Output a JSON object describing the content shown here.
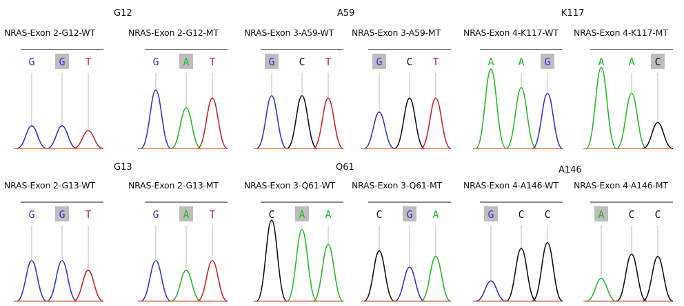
{
  "colors": {
    "A": "#22bb22",
    "C": "#111111",
    "G": "#3333cc",
    "T": "#cc2222",
    "highlight": "#bdbdbd",
    "frame": "#888888",
    "baseline": "#d06030"
  },
  "groups": [
    {
      "label": "G12"
    },
    {
      "label": "A59"
    },
    {
      "label": "K117"
    },
    {
      "label": "G13"
    },
    {
      "label": "Q61"
    },
    {
      "label": "A146"
    }
  ],
  "panels": [
    {
      "title": "NRAS-Exon 2-G12-WT",
      "bases": [
        "G",
        "G",
        "T"
      ],
      "highlight": 1,
      "peaks": [
        0.28,
        0.28,
        0.22
      ]
    },
    {
      "title": "NRAS-Exon 2-G12-MT",
      "bases": [
        "G",
        "A",
        "T"
      ],
      "highlight": 1,
      "peaks": [
        0.72,
        0.5,
        0.62
      ]
    },
    {
      "title": "NRAS-Exon 3-A59-WT",
      "bases": [
        "G",
        "C",
        "T"
      ],
      "highlight": 0,
      "peaks": [
        0.65,
        0.65,
        0.62
      ]
    },
    {
      "title": "NRAS-Exon 3-A59-MT",
      "bases": [
        "G",
        "C",
        "T"
      ],
      "highlight": 0,
      "peaks": [
        0.45,
        0.62,
        0.62
      ]
    },
    {
      "title": "NRAS-Exon 4-K117-WT",
      "bases": [
        "A",
        "A",
        "G"
      ],
      "highlight": 2,
      "peaks": [
        0.98,
        0.75,
        0.68
      ]
    },
    {
      "title": "NRAS-Exon 4-K117-MT",
      "bases": [
        "A",
        "A",
        "C"
      ],
      "highlight": 2,
      "peaks": [
        1.0,
        0.68,
        0.32
      ]
    },
    {
      "title": "NRAS-Exon 2-G13-WT",
      "bases": [
        "G",
        "G",
        "T"
      ],
      "highlight": 1,
      "peaks": [
        0.5,
        0.5,
        0.38
      ]
    },
    {
      "title": "NRAS-Exon 2-G13-MT",
      "bases": [
        "G",
        "A",
        "T"
      ],
      "highlight": 1,
      "peaks": [
        0.5,
        0.38,
        0.5
      ]
    },
    {
      "title": "NRAS-Exon 3-Q61-WT",
      "bases": [
        "C",
        "A",
        "A"
      ],
      "highlight": 1,
      "peaks": [
        1.0,
        0.88,
        0.7
      ]
    },
    {
      "title": "NRAS-Exon 3-Q61-MT",
      "bases": [
        "C",
        "G",
        "A"
      ],
      "highlight": 1,
      "peaks": [
        0.62,
        0.42,
        0.55
      ]
    },
    {
      "title": "NRAS-Exon 4-A146-WT",
      "bases": [
        "G",
        "C",
        "C"
      ],
      "highlight": 0,
      "peaks": [
        0.25,
        0.65,
        0.72
      ]
    },
    {
      "title": "NRAS-Exon 4-A146-MT",
      "bases": [
        "A",
        "C",
        "C"
      ],
      "highlight": 0,
      "peaks": [
        0.28,
        0.58,
        0.55
      ]
    }
  ]
}
